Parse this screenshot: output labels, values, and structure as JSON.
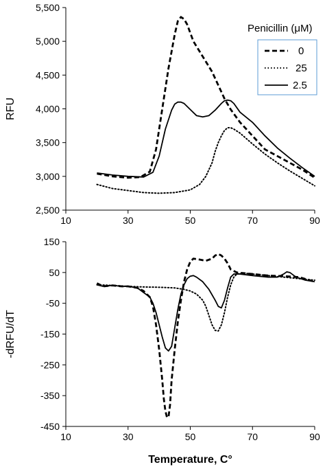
{
  "chart_data": [
    {
      "type": "line",
      "title": "",
      "xlabel": "",
      "ylabel": "RFU",
      "xlim": [
        10,
        90
      ],
      "ylim": [
        2500,
        5500
      ],
      "xticks": [
        "10",
        "30",
        "50",
        "70",
        "90"
      ],
      "yticks": [
        "2,500",
        "3,000",
        "3,500",
        "4,000",
        "4,500",
        "5,000",
        "5,500"
      ],
      "grid": false,
      "legend_title": "Penicillin (μM)",
      "legend_position": "top-right",
      "series": [
        {
          "name": "0",
          "style": "dashed",
          "x": [
            20,
            25,
            30,
            34,
            37,
            39,
            41,
            43,
            45,
            46,
            47,
            48,
            49,
            51,
            53,
            55,
            57,
            59,
            61,
            63,
            66,
            70,
            74,
            78,
            82,
            86,
            90
          ],
          "y": [
            3040,
            3000,
            2980,
            2990,
            3070,
            3400,
            4000,
            4600,
            5100,
            5300,
            5360,
            5330,
            5250,
            5000,
            4850,
            4700,
            4550,
            4350,
            4150,
            3990,
            3800,
            3600,
            3400,
            3300,
            3200,
            3100,
            2980
          ]
        },
        {
          "name": "25",
          "style": "dotted",
          "x": [
            20,
            25,
            30,
            35,
            40,
            45,
            50,
            53,
            55,
            57,
            58,
            59,
            60,
            61,
            62,
            63,
            64,
            66,
            70,
            74,
            78,
            82,
            86,
            90
          ],
          "y": [
            2880,
            2820,
            2790,
            2760,
            2750,
            2760,
            2800,
            2880,
            3000,
            3200,
            3370,
            3500,
            3600,
            3680,
            3720,
            3720,
            3700,
            3640,
            3480,
            3330,
            3200,
            3080,
            2970,
            2860
          ]
        },
        {
          "name": "2.5",
          "style": "solid",
          "x": [
            20,
            25,
            30,
            35,
            38,
            40,
            42,
            44,
            45,
            46,
            47,
            48,
            50,
            52,
            54,
            56,
            58,
            60,
            61,
            62,
            63,
            64,
            66,
            70,
            74,
            78,
            82,
            86,
            90
          ],
          "y": [
            3050,
            3020,
            3000,
            2990,
            3060,
            3300,
            3700,
            3980,
            4070,
            4100,
            4100,
            4080,
            3990,
            3900,
            3880,
            3900,
            3980,
            4080,
            4120,
            4130,
            4120,
            4080,
            3950,
            3800,
            3600,
            3420,
            3270,
            3130,
            3000
          ]
        }
      ]
    },
    {
      "type": "line",
      "title": "",
      "xlabel": "Temperature, C°",
      "ylabel": "-dRFU/dT",
      "xlim": [
        10,
        90
      ],
      "ylim": [
        -450,
        150
      ],
      "xticks": [
        "10",
        "30",
        "50",
        "70",
        "90"
      ],
      "yticks": [
        "-450",
        "-350",
        "-250",
        "-150",
        "-50",
        "50",
        "150"
      ],
      "grid": false,
      "legend_position": "none",
      "series": [
        {
          "name": "0",
          "style": "dashed",
          "x": [
            20,
            22,
            25,
            28,
            30,
            33,
            35,
            37,
            38,
            39,
            40,
            41,
            41.5,
            42,
            42.5,
            43,
            43.5,
            44,
            45,
            46,
            47,
            48,
            49,
            50,
            51,
            53,
            55,
            57,
            58,
            59,
            60,
            61,
            62,
            63,
            65,
            70,
            75,
            80,
            85,
            90
          ],
          "y": [
            15,
            5,
            8,
            5,
            5,
            0,
            -10,
            -30,
            -60,
            -120,
            -200,
            -300,
            -360,
            -400,
            -420,
            -420,
            -380,
            -300,
            -200,
            -110,
            -40,
            20,
            60,
            85,
            95,
            92,
            88,
            95,
            105,
            110,
            105,
            95,
            80,
            60,
            50,
            45,
            40,
            38,
            35,
            20
          ]
        },
        {
          "name": "25",
          "style": "dotted",
          "x": [
            20,
            25,
            30,
            35,
            40,
            45,
            48,
            50,
            52,
            54,
            55,
            56,
            57,
            58,
            59,
            60,
            61,
            62,
            63,
            64,
            65,
            67,
            70,
            75,
            80,
            85,
            90
          ],
          "y": [
            10,
            8,
            5,
            3,
            2,
            0,
            -5,
            -10,
            -20,
            -40,
            -60,
            -90,
            -120,
            -138,
            -140,
            -120,
            -80,
            -30,
            10,
            35,
            45,
            48,
            45,
            40,
            35,
            30,
            25
          ]
        },
        {
          "name": "2.5",
          "style": "solid",
          "x": [
            20,
            22,
            25,
            28,
            30,
            33,
            35,
            37,
            38,
            39,
            40,
            41,
            42,
            43,
            44,
            45,
            46,
            47,
            48,
            49,
            50,
            51,
            52,
            54,
            56,
            58,
            59,
            60,
            61,
            62,
            63,
            64,
            66,
            70,
            75,
            78,
            80,
            81,
            82,
            84,
            87,
            90
          ],
          "y": [
            10,
            5,
            8,
            5,
            5,
            0,
            -15,
            -30,
            -50,
            -80,
            -120,
            -160,
            -195,
            -205,
            -190,
            -130,
            -70,
            -20,
            10,
            30,
            38,
            40,
            35,
            20,
            -5,
            -40,
            -60,
            -65,
            -40,
            0,
            35,
            45,
            45,
            40,
            35,
            35,
            45,
            52,
            50,
            35,
            25,
            20
          ]
        }
      ]
    }
  ]
}
